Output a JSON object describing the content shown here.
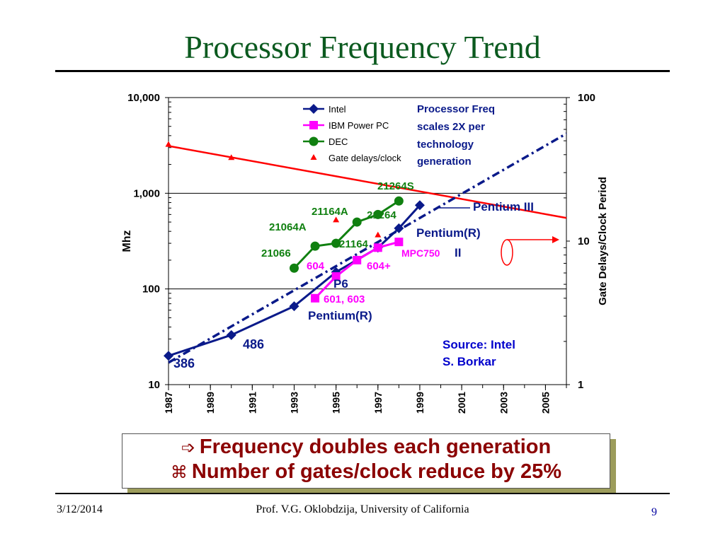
{
  "slide": {
    "title": "Processor Frequency Trend",
    "callout": {
      "line1": "Frequency doubles each generation",
      "line2": "Number of gates/clock reduce by 25%",
      "icon1": "arrow-bullet-icon",
      "icon2": "x-bullet-icon"
    },
    "footer": {
      "date": "3/12/2014",
      "credit": "Prof. V.G. Oklobdzija, University of California",
      "page": "9"
    }
  },
  "chart_data": {
    "type": "line",
    "ylabel": "Mhz",
    "y2label": "Gate Delays/Clock Period",
    "x_ticks": [
      "1987",
      "1989",
      "1991",
      "1993",
      "1995",
      "1997",
      "1999",
      "2001",
      "2003",
      "2005"
    ],
    "xlim": [
      1987,
      2006
    ],
    "y_scale": "log",
    "ylim": [
      10,
      10000
    ],
    "y_ticks": [
      "10",
      "100",
      "1,000",
      "10,000"
    ],
    "y2_scale": "log",
    "y2lim": [
      1,
      100
    ],
    "y2_ticks": [
      "1",
      "10",
      "100"
    ],
    "grid": "horizontal",
    "legend_position": "top-center",
    "series": [
      {
        "name": "Intel",
        "color": "#0a1a8a",
        "marker": "diamond",
        "x": [
          1987,
          1990,
          1993,
          1995,
          1997,
          1998,
          1999
        ],
        "y": [
          20,
          33,
          66,
          150,
          270,
          430,
          750
        ]
      },
      {
        "name": "IBM Power PC",
        "color": "#ff00ff",
        "marker": "square",
        "x": [
          1994,
          1995,
          1996,
          1997,
          1998
        ],
        "y": [
          80,
          135,
          200,
          270,
          310
        ]
      },
      {
        "name": "DEC",
        "color": "#108010",
        "marker": "circle",
        "x": [
          1993,
          1994,
          1995,
          1996,
          1997,
          1998
        ],
        "y": [
          165,
          280,
          300,
          500,
          600,
          830
        ]
      },
      {
        "name": "Gate delays/clock",
        "color": "#ff0000",
        "marker": "triangle",
        "axis": "right",
        "x": [
          1987,
          1990,
          1995,
          1997
        ],
        "y": [
          47,
          38,
          14,
          11
        ]
      }
    ],
    "trend_lines": [
      {
        "name": "gate-delay-trend",
        "color": "#ff0000",
        "axis": "right",
        "x": [
          1987,
          2006
        ],
        "y": [
          46,
          14.5
        ]
      },
      {
        "name": "frequency-trend",
        "color": "#0a1a8a",
        "style": "dash-dot",
        "x": [
          1987,
          2006
        ],
        "y": [
          17,
          4200
        ]
      }
    ],
    "annotations": [
      {
        "text": "Processor Freq",
        "color": "#0a1a8a"
      },
      {
        "text": "scales 2X per",
        "color": "#0a1a8a"
      },
      {
        "text": "technology",
        "color": "#0a1a8a"
      },
      {
        "text": "generation",
        "color": "#0a1a8a"
      },
      {
        "text": "21264S",
        "color": "#108010"
      },
      {
        "text": "21164A",
        "color": "#108010"
      },
      {
        "text": "21264",
        "color": "#108010"
      },
      {
        "text": "21064A",
        "color": "#108010"
      },
      {
        "text": "21164",
        "color": "#108010"
      },
      {
        "text": "21066",
        "color": "#108010"
      },
      {
        "text": "Pentium III",
        "color": "#0a1a8a"
      },
      {
        "text": "Pentium(R)",
        "color": "#0a1a8a"
      },
      {
        "text": "II",
        "color": "#0a1a8a"
      },
      {
        "text": "MPC750",
        "color": "#ff00ff"
      },
      {
        "text": "604",
        "color": "#ff00ff"
      },
      {
        "text": "604+",
        "color": "#ff00ff"
      },
      {
        "text": "P6",
        "color": "#0a1a8a"
      },
      {
        "text": "601, 603",
        "color": "#ff00ff"
      },
      {
        "text": "Pentium(R)",
        "color": "#0a1a8a"
      },
      {
        "text": "486",
        "color": "#0a1a8a"
      },
      {
        "text": "386",
        "color": "#0a1a8a"
      },
      {
        "text": "Source: Intel",
        "color": "#0000cc"
      },
      {
        "text": "S. Borkar",
        "color": "#0000cc"
      }
    ]
  }
}
